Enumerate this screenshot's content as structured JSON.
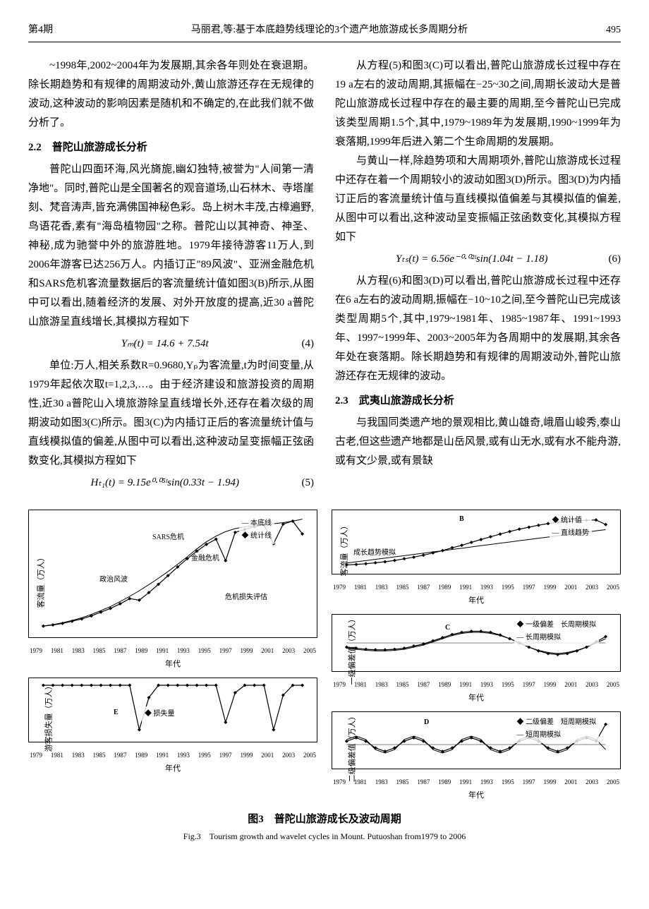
{
  "header": {
    "issue": "第4期",
    "running_title": "马丽君,等:基于本底趋势线理论的3个遗产地旅游成长多周期分析",
    "page": "495"
  },
  "left_col": {
    "p1": "~1998年,2002~2004年为发展期,其余各年则处在衰退期。除长期趋势和有规律的周期波动外,黄山旅游还存在无规律的波动,这种波动的影响因素是随机和不确定的,在此我们就不做分析了。",
    "h22": "2.2　普陀山旅游成长分析",
    "p2": "普陀山四面环海,风光旖旎,幽幻独特,被誉为\"人间第一清净地\"。同时,普陀山是全国著名的观音道场,山石林木、寺塔崖刻、梵音涛声,皆充满佛国神秘色彩。岛上树木丰茂,古樟遍野,鸟语花香,素有\"海岛植物园\"之称。普陀山以其神奇、神圣、神秘,成为驰誉中外的旅游胜地。1979年接待游客11万人,到2006年游客已达256万人。内插订正\"89风波\"、亚洲金融危机和SARS危机客流量数据后的客流量统计值如图3(B)所示,从图中可以看出,随着经济的发展、对外开放度的提高,近30 a普陀山旅游呈直线增长,其模拟方程如下",
    "eq4": "Yₘ(t) = 14.6 + 7.54t",
    "eq4_num": "(4)",
    "p3": "单位:万人,相关系数R=0.9680,Yₚ为客流量,t为时间变量,从1979年起依次取t=1,2,3,…。由于经济建设和旅游投资的周期性,近30 a普陀山入境旅游除呈直线增长外,还存在着次级的周期波动如图3(C)所示。图3(C)为内插订正后的客流量统计值与直线模拟值的偏差,从图中可以看出,这种波动呈变振幅正弦函数变化,其模拟方程如下",
    "eq5": "Hₜ₁(t) = 9.15e⁰·⁰⁵ᵗsin(0.33t − 1.94)",
    "eq5_num": "(5)"
  },
  "right_col": {
    "p4": "从方程(5)和图3(C)可以看出,普陀山旅游成长过程中存在19 a左右的波动周期,其振幅在−25~30之间,周期长波动大是普陀山旅游成长过程中存在的最主要的周期,至今普陀山已完成该类型周期1.5个,其中,1979~1989年为发展期,1990~1999年为衰落期,1999年后进入第二个生命周期的发展期。",
    "p5": "与黄山一样,除趋势项和大周期项外,普陀山旅游成长过程中还存在着一个周期较小的波动如图3(D)所示。图3(D)为内插订正后的客流量统计值与直线模拟值偏差与其模拟值的偏差,从图中可以看出,这种波动呈变振幅正弦函数变化,其模拟方程如下",
    "eq6": "Yₜₛ(t) = 6.56e⁻⁰·⁰²ᵗsin(1.04t − 1.18)",
    "eq6_num": "(6)",
    "p6": "从方程(6)和图3(D)可以看出,普陀山旅游成长过程中还存在6 a左右的波动周期,振幅在−10~10之间,至今普陀山已完成该类型周期5个,其中,1979~1981年、1985~1987年、1991~1993年、1997~1999年、2003~2005年为各周期中的发展期,其余各年处在衰落期。除长期趋势和有规律的周期波动外,普陀山旅游还存在无规律的波动。",
    "h23": "2.3　武夷山旅游成长分析",
    "p7": "与我国同类遗产地的景观相比,黄山雄奇,峨眉山峻秀,泰山古老,但这些遗产地都是山岳风景,或有山无水,或有水不能舟游,或有文少景,或有景缺"
  },
  "figure3": {
    "caption_zh": "图3　普陀山旅游成长及波动周期",
    "caption_en": "Fig.3　Tourism growth and wavelet cycles in Mount. Putuoshan from1979 to 2006",
    "chart_A": {
      "type": "line",
      "ylabel": "客流量（万人）",
      "xlabel": "年代",
      "ylim": [
        0,
        300
      ],
      "yticks": [
        0,
        100,
        200,
        300
      ],
      "xlim": [
        1979,
        2005
      ],
      "xticks": [
        1979,
        1981,
        1983,
        1985,
        1987,
        1989,
        1991,
        1993,
        1995,
        1997,
        1999,
        2001,
        2003,
        2005
      ],
      "legend_items": [
        "本底线",
        "统计线"
      ],
      "annotations": [
        "政治风波",
        "金融危机",
        "SARS危机",
        "危机损失评估"
      ],
      "series_benxian": [
        11,
        15,
        20,
        26,
        33,
        42,
        52,
        63,
        76,
        90,
        105,
        121,
        138,
        156,
        175,
        195,
        216,
        235,
        250,
        262,
        270,
        275,
        278,
        280,
        283,
        286,
        290,
        295
      ],
      "series_tongji": [
        11,
        14,
        18,
        24,
        30,
        38,
        48,
        58,
        70,
        84,
        80,
        100,
        122,
        145,
        168,
        190,
        210,
        228,
        242,
        185,
        260,
        268,
        275,
        280,
        230,
        282,
        290,
        256
      ],
      "line_color": "#000000",
      "marker": "diamond",
      "background": "#ffffff"
    },
    "chart_A_loss": {
      "type": "line",
      "ylabel": "游客损失量（万人）",
      "xlabel": "年代",
      "ylim": [
        -20,
        0
      ],
      "yticks": [
        -20,
        -15,
        -10,
        -5,
        0
      ],
      "xlim": [
        1979,
        2005
      ],
      "xticks": [
        1979,
        1981,
        1983,
        1985,
        1987,
        1989,
        1991,
        1993,
        1995,
        1997,
        1999,
        2001,
        2003,
        2005
      ],
      "legend_items": [
        "损失量"
      ],
      "annotation_label": "E",
      "series": [
        0,
        0,
        0,
        0,
        0,
        0,
        0,
        0,
        0,
        0,
        -18,
        -5,
        0,
        0,
        0,
        0,
        0,
        0,
        0,
        -15,
        -3,
        0,
        0,
        0,
        -18,
        -4,
        0,
        0
      ],
      "line_color": "#000000",
      "marker": "diamond"
    },
    "chart_B": {
      "type": "line",
      "panel_label": "B",
      "ylabel": "客流量（万人）",
      "xlabel": "年代",
      "ylim": [
        0,
        300
      ],
      "yticks": [
        0,
        100,
        200,
        300
      ],
      "xlim": [
        1979,
        2005
      ],
      "xticks": [
        1979,
        1981,
        1983,
        1985,
        1987,
        1989,
        1991,
        1993,
        1995,
        1997,
        1999,
        2001,
        2003,
        2005
      ],
      "legend_items": [
        "统计值",
        "直线趋势"
      ],
      "annotation": "成长趋势模拟",
      "series_stat": [
        11,
        14,
        18,
        24,
        30,
        38,
        48,
        58,
        70,
        84,
        98,
        115,
        130,
        148,
        165,
        182,
        198,
        214,
        228,
        240,
        252,
        262,
        270,
        276,
        280,
        282,
        284,
        256
      ],
      "series_trend": [
        22,
        30,
        37,
        45,
        52,
        60,
        67,
        75,
        82,
        90,
        97,
        105,
        112,
        120,
        128,
        135,
        143,
        150,
        158,
        165,
        173,
        180,
        188,
        195,
        203,
        210,
        218,
        225
      ],
      "line_color": "#000000",
      "marker": "diamond"
    },
    "chart_C": {
      "type": "line",
      "panel_label": "C",
      "ylabel": "一级偏差值（万人）",
      "xlabel": "年代",
      "ylim": [
        -40,
        40
      ],
      "yticks": [
        -40,
        -20,
        0,
        20,
        40
      ],
      "xlim": [
        1979,
        2005
      ],
      "xticks": [
        1979,
        1981,
        1983,
        1985,
        1987,
        1989,
        1991,
        1993,
        1995,
        1997,
        1999,
        2001,
        2003,
        2005
      ],
      "legend_items": [
        "一级偏差",
        "长周期模拟"
      ],
      "annotation": "长周期模拟",
      "series_dev": [
        -8,
        -10,
        -12,
        -13,
        -13,
        -12,
        -10,
        -6,
        -2,
        4,
        10,
        16,
        20,
        22,
        22,
        20,
        15,
        8,
        0,
        -8,
        -15,
        -20,
        -22,
        -20,
        -15,
        -8,
        2,
        12
      ],
      "series_model": [
        -10,
        -12,
        -14,
        -15,
        -15,
        -14,
        -12,
        -8,
        -4,
        2,
        8,
        14,
        18,
        20,
        20,
        18,
        14,
        8,
        0,
        -8,
        -14,
        -18,
        -20,
        -18,
        -14,
        -8,
        0,
        8
      ],
      "line_color": "#000000"
    },
    "chart_D": {
      "type": "line",
      "panel_label": "D",
      "ylabel": "二级偏差值（万人）",
      "xlabel": "年代",
      "ylim": [
        -10,
        15
      ],
      "yticks": [
        -10,
        -5,
        0,
        5,
        10,
        15
      ],
      "xlim": [
        1979,
        2005
      ],
      "xticks": [
        1979,
        1981,
        1983,
        1985,
        1987,
        1989,
        1991,
        1993,
        1995,
        1997,
        1999,
        2001,
        2003,
        2005
      ],
      "legend_items": [
        "二级偏差",
        "短周期模拟"
      ],
      "annotation": "短周期模拟",
      "series_dev": [
        2,
        4,
        2,
        -2,
        -4,
        -2,
        2,
        4,
        2,
        -2,
        -4,
        -2,
        2,
        4,
        2,
        -2,
        -4,
        -2,
        2,
        4,
        2,
        -2,
        -4,
        -2,
        2,
        4,
        2,
        12
      ],
      "series_model": [
        3,
        5,
        3,
        -3,
        -5,
        -3,
        3,
        5,
        3,
        -3,
        -5,
        -3,
        3,
        5,
        3,
        -3,
        -5,
        -3,
        3,
        5,
        3,
        -3,
        -5,
        -3,
        3,
        5,
        3,
        -3
      ],
      "line_color": "#000000"
    }
  }
}
